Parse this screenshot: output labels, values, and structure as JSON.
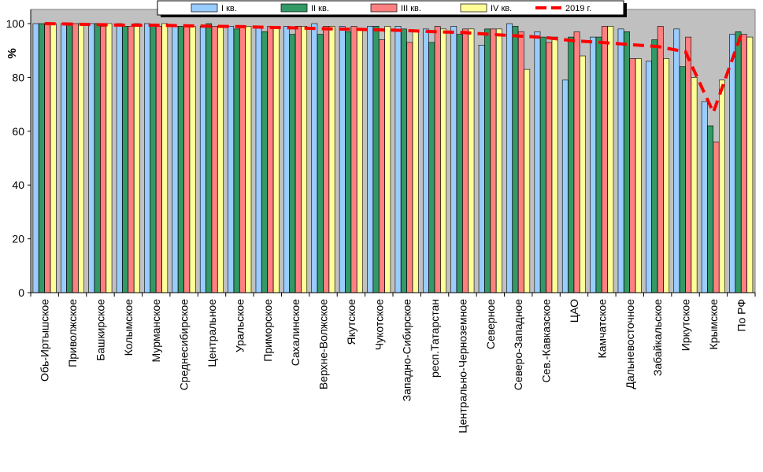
{
  "chart_data": {
    "type": "bar",
    "ylabel": "%",
    "ylim": [
      0,
      100
    ],
    "yticks": [
      "0",
      "20",
      "40",
      "60",
      "80",
      "100"
    ],
    "grid": false,
    "legend_position": "top",
    "categories": [
      "Обь-Иртышское",
      "Приволжское",
      "Башкирское",
      "Колымское",
      "Мурманское",
      "Среднесибирское",
      "Центральное",
      "Уральское",
      "Приморское",
      "Сахалинское",
      "Верхне-Волжское",
      "Якутское",
      "Чукотское",
      "Западно-Сибирское",
      "респ.Татарстан",
      "Центрально-Черноземное",
      "Северное",
      "Северо-Западное",
      "Сев.-Кавказское",
      "ЦАО",
      "Камчатское",
      "Дальневосточное",
      "Забайкальское",
      "Иркутское",
      "Крымское",
      "По РФ"
    ],
    "series": [
      {
        "name": "I кв.",
        "color": "#99ccff",
        "values": [
          100,
          100,
          100,
          100,
          100,
          99,
          99,
          99,
          99,
          99,
          100,
          99,
          99,
          99,
          98,
          99,
          92,
          100,
          97,
          79,
          95,
          98,
          86,
          98,
          71,
          96
        ]
      },
      {
        "name": "II кв.",
        "color": "#339966",
        "values": [
          100,
          100,
          100,
          99,
          99,
          99,
          100,
          98,
          97,
          96,
          96,
          97,
          99,
          98,
          93,
          96,
          98,
          99,
          95,
          95,
          95,
          97,
          94,
          84,
          62,
          97
        ]
      },
      {
        "name": "III кв.",
        "color": "#ff8080",
        "values": [
          100,
          100,
          99,
          99,
          99,
          99,
          99,
          99,
          99,
          99,
          99,
          99,
          94,
          93,
          99,
          98,
          98,
          97,
          93,
          97,
          99,
          87,
          99,
          95,
          56,
          96
        ]
      },
      {
        "name": "IV кв.",
        "color": "#ffff99",
        "values": [
          100,
          100,
          100,
          100,
          100,
          99,
          99,
          99,
          99,
          99,
          99,
          98,
          99,
          97,
          98,
          98,
          98,
          83,
          95,
          88,
          99,
          87,
          87,
          80,
          79,
          95
        ]
      }
    ],
    "line_series": {
      "name": "2019 г.",
      "color": "#ff0000",
      "values": [
        100,
        99.8,
        99.6,
        99.4,
        99.4,
        99.2,
        99.0,
        98.9,
        98.6,
        98.4,
        98.1,
        97.9,
        97.7,
        97.4,
        97.0,
        96.7,
        96.0,
        95.4,
        94.8,
        93.6,
        93.0,
        92.2,
        91.5,
        89.5,
        67,
        96
      ]
    }
  }
}
